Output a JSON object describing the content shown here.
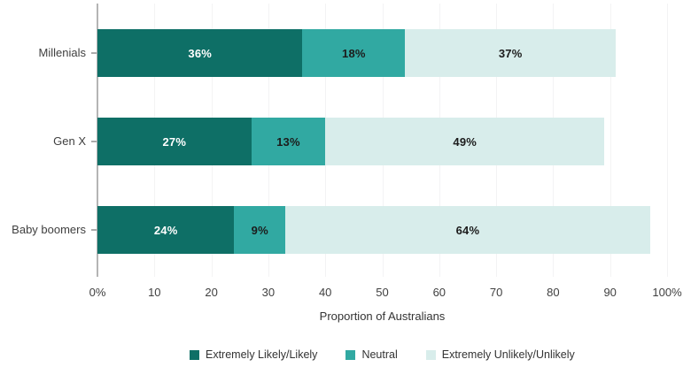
{
  "chart_data": {
    "type": "bar",
    "orientation": "horizontal",
    "stacked": true,
    "title": "",
    "xlabel": "Proportion of Australians",
    "ylabel": "",
    "xlim": [
      0,
      100
    ],
    "grid": true,
    "legend_position": "bottom",
    "value_suffix": "%",
    "categories": [
      "Millenials",
      "Gen X",
      "Baby boomers"
    ],
    "x_ticks": [
      "0%",
      "10",
      "20",
      "30",
      "40",
      "50",
      "60",
      "70",
      "80",
      "90",
      "100%"
    ],
    "series": [
      {
        "name": "Extremely Likely/Likely",
        "color": "#0e6f66",
        "label_color": "#ffffff",
        "values": [
          36,
          27,
          24
        ]
      },
      {
        "name": "Neutral",
        "color": "#31a9a2",
        "label_color": "#1c1c1c",
        "values": [
          18,
          13,
          9
        ]
      },
      {
        "name": "Extremely Unlikely/Unlikely",
        "color": "#d8edeb",
        "label_color": "#1c1c1c",
        "values": [
          37,
          49,
          64
        ]
      }
    ],
    "colors": {
      "axis_line": "#b5b5b5",
      "gridline": "#f3f3f4",
      "tick_text": "#404040"
    }
  }
}
